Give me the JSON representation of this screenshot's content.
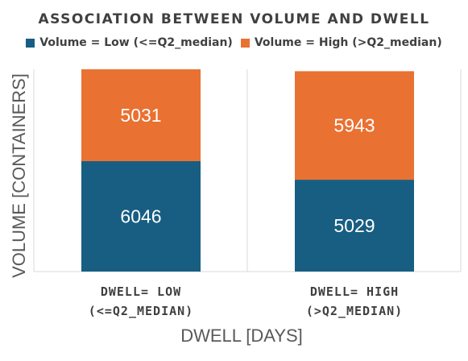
{
  "colors": {
    "low": "#175E82",
    "high": "#E97132",
    "text": "#404040",
    "axis_label": "#595959",
    "grid": "#D9D9D9"
  },
  "chart_data": {
    "type": "bar",
    "stacked": true,
    "title": "ASSOCIATION BETWEEN VOLUME AND DWELL",
    "xlabel": "DWELL [DAYS]",
    "ylabel": "VOLUME [CONTAINERS]",
    "categories": [
      {
        "line1": "DWELL= LOW",
        "line2": "(<=Q2_MEDIAN)"
      },
      {
        "line1": "DWELL= HIGH",
        "line2": "(>Q2_MEDIAN)"
      }
    ],
    "series": [
      {
        "name": "Volume = Low (<=Q2_median)",
        "values": [
          6046,
          5029
        ],
        "color": "#175E82"
      },
      {
        "name": "Volume = High (>Q2_median)",
        "values": [
          5031,
          5943
        ],
        "color": "#E97132"
      }
    ],
    "ylim": [
      0,
      11077
    ],
    "legend_position": "top",
    "grid": true
  }
}
